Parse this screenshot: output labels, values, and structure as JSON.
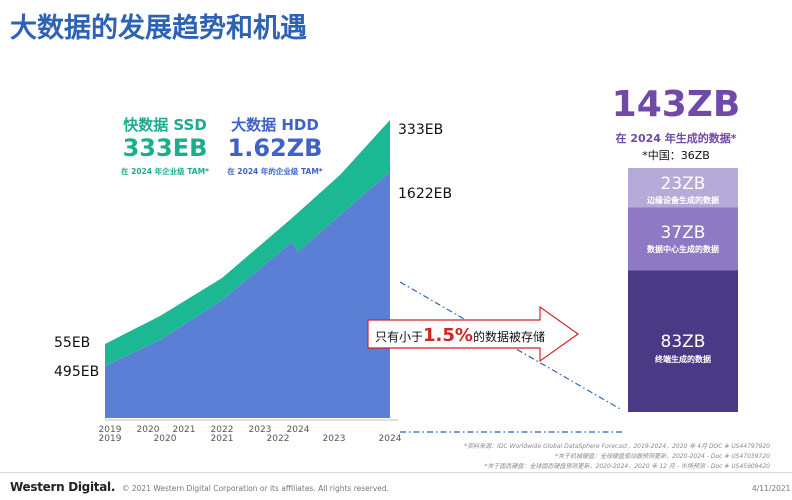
{
  "title": "大数据的发展趋势和机遇",
  "chart_data": {
    "type": "area",
    "x": [
      "2019",
      "2020",
      "2021",
      "2022",
      "2023",
      "2024"
    ],
    "x_secondary": [
      "2019",
      "2020",
      "2021",
      "2022",
      "2023",
      "2024"
    ],
    "series": [
      {
        "name": "快数据 SSD",
        "color": "#1cb894",
        "start_label": "55EB",
        "end_label": "333EB",
        "start_value": 55,
        "end_value": 333
      },
      {
        "name": "大数据 HDD",
        "color": "#5b7fd4",
        "start_label": "495EB",
        "end_label": "1622EB",
        "start_value": 495,
        "end_value": 1622
      }
    ],
    "ssd": {
      "name": "快数据 SSD",
      "value": "333EB",
      "note": "在 2024 年企业级 TAM*"
    },
    "hdd": {
      "name": "大数据 HDD",
      "value": "1.62ZB",
      "note": "在 2024 年的企业级 TAM*"
    },
    "callout": {
      "prefix": "只有小于",
      "percent": "1.5%",
      "suffix": "的数据被存储"
    },
    "total": {
      "value": "143ZB",
      "subtitle": "在 2024 年生成的数据*",
      "china": "*中国：36ZB"
    },
    "breakdown": [
      {
        "value": "23ZB",
        "label": "边缘设备生成的数据",
        "color": "#b5aad8",
        "zb": 23
      },
      {
        "value": "37ZB",
        "label": "数据中心生成的数据",
        "color": "#8d79c4",
        "zb": 37
      },
      {
        "value": "83ZB",
        "label": "终端生成的数据",
        "color": "#4a3a86",
        "zb": 83
      }
    ]
  },
  "footnotes": [
    "*资料来源：IDC Worldwide Global DataSphere Forecast，2019-2024，2020 年 4月 DOC # US44797920",
    "*关于机械硬盘：全球硬盘驱动器预测更新，2020-2024 - Doc # US47039720",
    "*关于固态硬盘：全球固态硬盘预测更新，2020-2024，2020 年 12 月 - 市场预测 - Doc # US45909420"
  ],
  "footer": {
    "brand": "Western Digital.",
    "copyright": "© 2021 Western Digital Corporation or its affiliates. All rights reserved.",
    "date": "4/11/2021"
  }
}
